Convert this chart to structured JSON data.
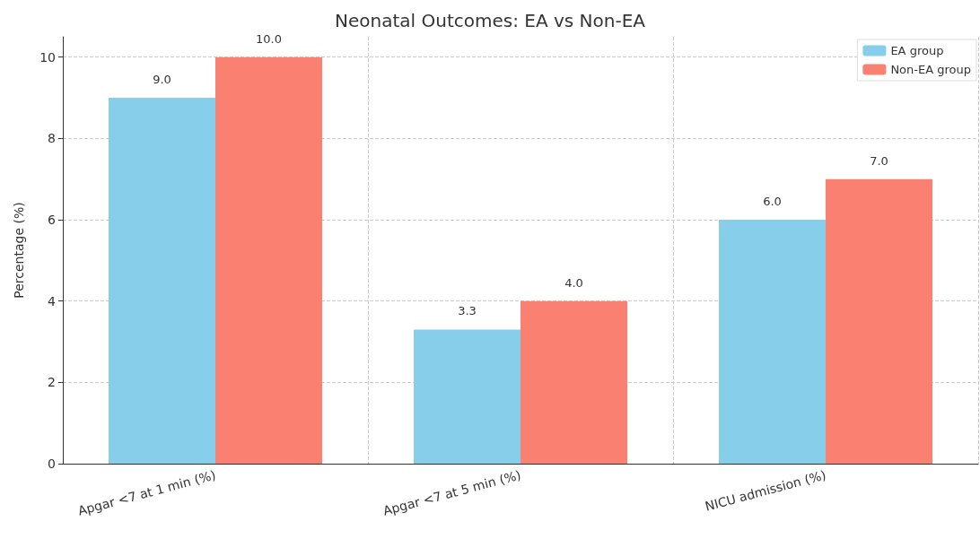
{
  "chart_data": {
    "type": "bar",
    "title": "Neonatal Outcomes: EA vs Non-EA",
    "ylabel": "Percentage (%)",
    "categories": [
      "Apgar <7 at 1 min (%)",
      "Apgar <7 at 5 min (%)",
      "NICU admission (%)"
    ],
    "series": [
      {
        "name": "EA group",
        "color": "#87ceeb",
        "values": [
          9.0,
          3.3,
          6.0
        ],
        "value_labels": [
          "9.0",
          "3.3",
          "6.0"
        ]
      },
      {
        "name": "Non-EA group",
        "color": "#fa8072",
        "values": [
          10.0,
          4.0,
          7.0
        ],
        "value_labels": [
          "10.0",
          "4.0",
          "7.0"
        ]
      }
    ],
    "ylim": [
      0,
      10.5
    ],
    "yticks": [
      0,
      2,
      4,
      6,
      8,
      10
    ],
    "grid": true,
    "legend": "top right"
  }
}
